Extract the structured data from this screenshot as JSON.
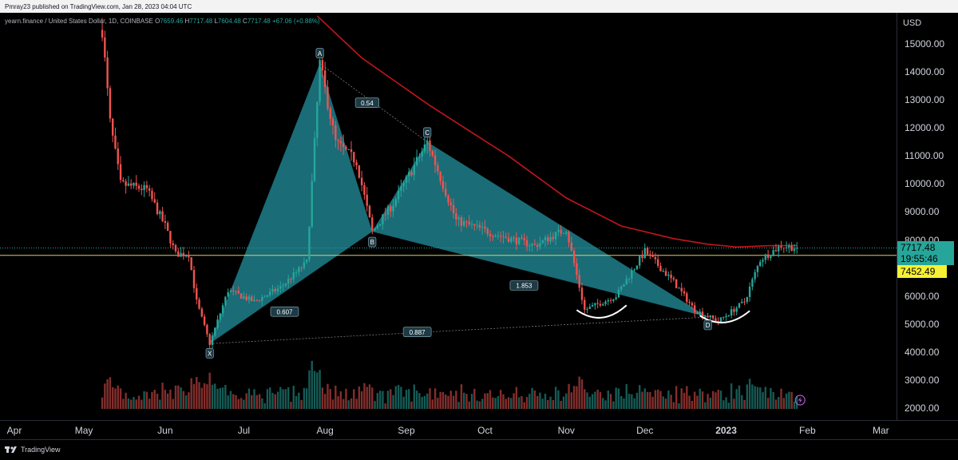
{
  "header": {
    "published_text": "Pmray23 published on TradingView.com, Jan 28, 2023 04:04 UTC"
  },
  "legend": {
    "symbol": "yearn.finance / United States Dollar, 1D, COINBASE",
    "open_label": "O",
    "open": "7659.46",
    "high_label": "H",
    "high": "7717.48",
    "low_label": "L",
    "low": "7604.48",
    "close_label": "C",
    "close": "7717.48",
    "change": "+67.06 (+0.88%)"
  },
  "price_axis": {
    "currency": "USD",
    "ticks": [
      "15000.00",
      "14000.00",
      "13000.00",
      "12000.00",
      "11000.00",
      "10000.00",
      "9000.00",
      "8000.00",
      "7000.00",
      "6000.00",
      "5000.00",
      "4000.00",
      "3000.00",
      "2000.00"
    ],
    "last_price": "7717.48",
    "countdown": "19:55:46",
    "hline_price": "7452.49"
  },
  "time_axis": {
    "ticks": [
      "Apr",
      "May",
      "Jun",
      "Jul",
      "Aug",
      "Sep",
      "Oct",
      "Nov",
      "Dec",
      "2023",
      "Feb",
      "Mar"
    ]
  },
  "pattern": {
    "points": [
      {
        "label": "X",
        "date": "2022-06-18",
        "price": 4300
      },
      {
        "label": "A",
        "date": "2022-07-30",
        "price": 14300
      },
      {
        "label": "B",
        "date": "2022-08-19",
        "price": 8300
      },
      {
        "label": "C",
        "date": "2022-09-09",
        "price": 11500
      },
      {
        "label": "D",
        "date": "2022-12-25",
        "price": 5250
      }
    ],
    "ratios": [
      {
        "text": "0.54"
      },
      {
        "text": "0.607"
      },
      {
        "text": "1.853"
      },
      {
        "text": "0.887"
      }
    ],
    "fill_color": "#1f7f8c"
  },
  "colors": {
    "up": "#26a69a",
    "down": "#ef5350",
    "ma": "#c2161b",
    "hline": "#d4d06a",
    "background": "#000000"
  },
  "footer": {
    "brand": "TradingView"
  },
  "chart_data": {
    "type": "candlestick",
    "title": "yearn.finance / United States Dollar, 1D, COINBASE",
    "ylabel": "USD",
    "ylim": [
      1600,
      16200
    ],
    "x_range": [
      "2022-03-30",
      "2023-03-07"
    ],
    "last_close": 7717.48,
    "horizontal_line": 7452.49,
    "price_path": [
      [
        "2022-05-08",
        15500
      ],
      [
        "2022-05-11",
        12200
      ],
      [
        "2022-05-15",
        10000
      ],
      [
        "2022-05-25",
        9800
      ],
      [
        "2022-06-01",
        8500
      ],
      [
        "2022-06-05",
        7500
      ],
      [
        "2022-06-10",
        7500
      ],
      [
        "2022-06-13",
        5800
      ],
      [
        "2022-06-18",
        4300
      ],
      [
        "2022-06-25",
        6200
      ],
      [
        "2022-07-05",
        5800
      ],
      [
        "2022-07-15",
        6300
      ],
      [
        "2022-07-25",
        7200
      ],
      [
        "2022-07-30",
        14300
      ],
      [
        "2022-08-05",
        11500
      ],
      [
        "2022-08-13",
        10800
      ],
      [
        "2022-08-19",
        8300
      ],
      [
        "2022-08-27",
        9300
      ],
      [
        "2022-09-09",
        11500
      ],
      [
        "2022-09-20",
        8700
      ],
      [
        "2022-10-05",
        8200
      ],
      [
        "2022-10-20",
        7800
      ],
      [
        "2022-11-01",
        8400
      ],
      [
        "2022-11-08",
        5500
      ],
      [
        "2022-11-20",
        6000
      ],
      [
        "2022-12-01",
        7600
      ],
      [
        "2022-12-12",
        6500
      ],
      [
        "2022-12-20",
        5500
      ],
      [
        "2022-12-29",
        5100
      ],
      [
        "2023-01-08",
        5800
      ],
      [
        "2023-01-14",
        7300
      ],
      [
        "2023-01-22",
        7800
      ],
      [
        "2023-01-28",
        7717.48
      ]
    ],
    "ma_path": [
      [
        "2022-07-29",
        16000
      ],
      [
        "2022-08-15",
        14500
      ],
      [
        "2022-09-10",
        12800
      ],
      [
        "2022-10-10",
        11000
      ],
      [
        "2022-11-01",
        9500
      ],
      [
        "2022-11-22",
        8500
      ],
      [
        "2022-12-12",
        8050
      ],
      [
        "2022-12-25",
        7850
      ],
      [
        "2023-01-05",
        7750
      ],
      [
        "2023-01-18",
        7800
      ],
      [
        "2023-01-28",
        7800
      ]
    ],
    "volume_scale": [
      0,
      1
    ]
  }
}
